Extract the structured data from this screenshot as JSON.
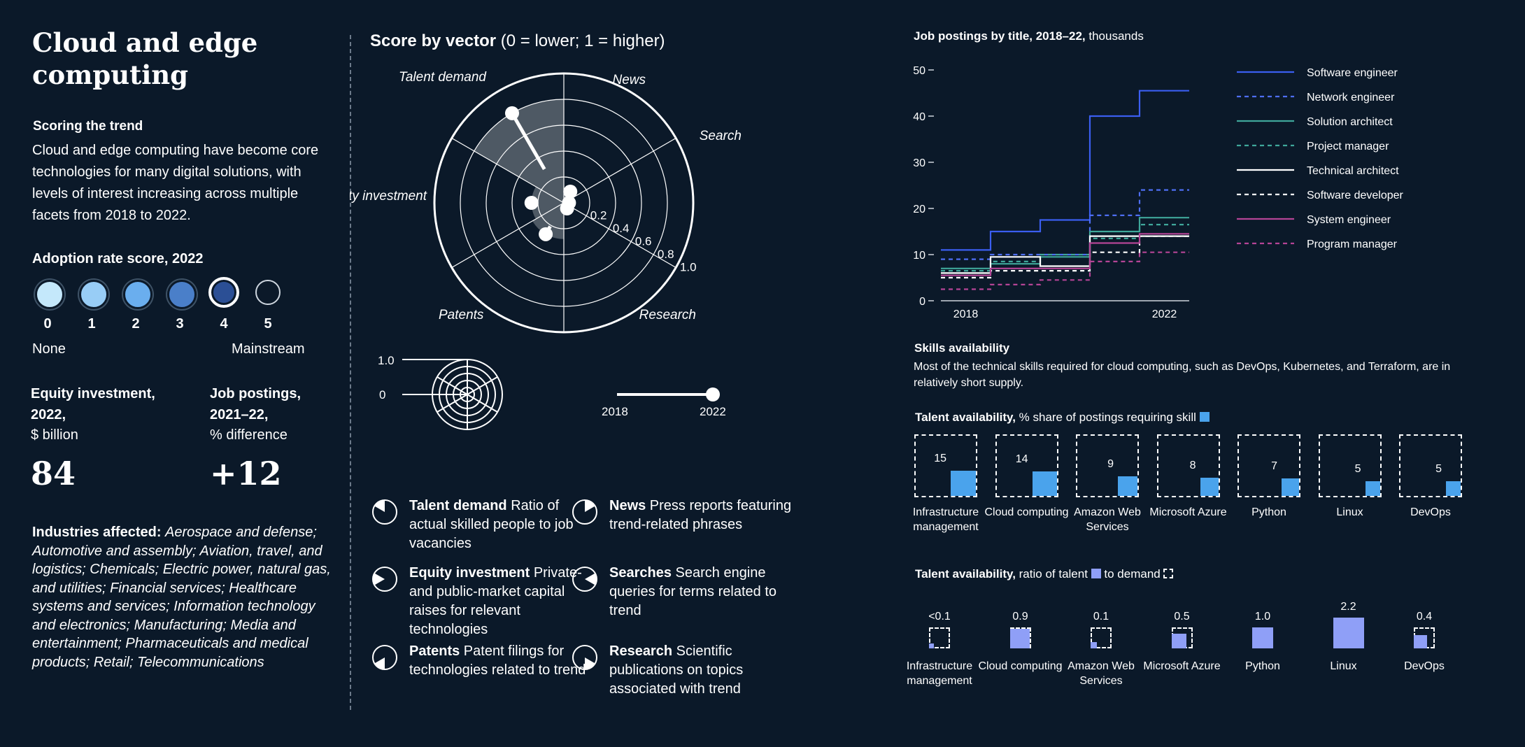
{
  "left": {
    "title": "Cloud and edge computing",
    "scoring_heading": "Scoring the trend",
    "scoring_text": "Cloud and edge computing have become core technologies for many digital solutions, with levels of interest increasing across multiple facets from 2018 to 2022.",
    "adoption_heading": "Adoption rate score, 2022",
    "adoption_scores": [
      "0",
      "1",
      "2",
      "3",
      "4",
      "5"
    ],
    "adoption_selected": 4,
    "adoption_colors": [
      "#c4e8fb",
      "#98cdf6",
      "#6aaeee",
      "#4a7fc9",
      "#2b4f95",
      "#0b1929"
    ],
    "adoption_min_label": "None",
    "adoption_max_label": "Mainstream",
    "equity_heading": "Equity investment, 2022,",
    "equity_unit": "$ billion",
    "equity_value": "84",
    "jobs_heading": "Job postings, 2021–22,",
    "jobs_unit": "% difference",
    "jobs_value": "+12",
    "industries_label": "Industries affected:",
    "industries_text": "Aerospace and defense; Automotive and assembly; Aviation, travel, and logistics; Chemicals; Electric power, natural gas, and utilities; Financial services; Healthcare systems and services; Information technology and electronics; Manufacturing; Media and entertainment; Pharmaceuticals and medical products; Retail; Telecommunications"
  },
  "middle": {
    "title_bold": "Score by vector",
    "title_rest": " (0 = lower; 1 = higher)",
    "axis_labels": [
      "Talent demand",
      "News",
      "Searches",
      "Research",
      "Patents",
      "Equity investment"
    ],
    "ring_labels": [
      "0.2",
      "0.4",
      "0.6",
      "0.8",
      "1.0"
    ],
    "key_scale_labels": [
      "1.0",
      "0"
    ],
    "time_labels": [
      "2018",
      "2022"
    ],
    "legend": [
      {
        "bold": "Talent demand",
        "text": " Ratio of actual skilled people to job vacancies"
      },
      {
        "bold": "News",
        "text": " Press reports featuring trend-related phrases"
      },
      {
        "bold": "Equity investment",
        "text": " Private- and public-market capital raises for relevant technologies"
      },
      {
        "bold": "Searches",
        "text": " Search engine queries for terms related to trend"
      },
      {
        "bold": "Patents",
        "text": " Patent filings for technologies related to trend"
      },
      {
        "bold": "Research",
        "text": " Scientific publications on topics associated with trend"
      }
    ]
  },
  "right": {
    "job_title_bold": "Job postings by title, 2018–22,",
    "job_title_rest": " thousands",
    "skills_heading": "Skills availability",
    "skills_text": "Most of the technical skills required for cloud computing, such as DevOps, Kubernetes, and Terraform, are in relatively short supply.",
    "share_title_bold": "Talent availability,",
    "share_title_rest": " % share of postings requiring skill",
    "ratio_title_bold": "Talent availability,",
    "ratio_title_mid": " ratio of talent",
    "ratio_title_end": " to demand"
  },
  "chart_data": [
    {
      "type": "radar",
      "title": "Score by vector (0 = lower; 1 = higher)",
      "axes": [
        "Talent demand",
        "News",
        "Searches",
        "Research",
        "Patents",
        "Equity investment"
      ],
      "rlim": [
        0,
        1
      ],
      "series": [
        {
          "name": "2018",
          "values": [
            0.3,
            0.05,
            0.03,
            0.03,
            0.21,
            0.25
          ]
        },
        {
          "name": "2022",
          "values": [
            0.8,
            0.1,
            0.04,
            0.05,
            0.28,
            0.25
          ]
        }
      ]
    },
    {
      "type": "line",
      "step": true,
      "title": "Job postings by title, 2018–22, thousands",
      "x": [
        2018,
        2019,
        2020,
        2021,
        2022
      ],
      "x_tick_labels": [
        "2018",
        "2022"
      ],
      "ylim": [
        0,
        50
      ],
      "y_ticks": [
        "0",
        "10",
        "20",
        "30",
        "40",
        "50"
      ],
      "series": [
        {
          "name": "Software engineer",
          "values": [
            11,
            15,
            17.5,
            40,
            45.5
          ],
          "color": "#3b5ef0",
          "dashed": false
        },
        {
          "name": "Network engineer",
          "values": [
            9,
            10,
            10,
            18.5,
            24
          ],
          "color": "#4e6ef2",
          "dashed": true
        },
        {
          "name": "Solution architect",
          "values": [
            7,
            8,
            9.5,
            15,
            18
          ],
          "color": "#3fa79a",
          "dashed": false
        },
        {
          "name": "Project manager",
          "values": [
            6.5,
            8.5,
            10,
            13.5,
            16.5
          ],
          "color": "#3fa79a",
          "dashed": true
        },
        {
          "name": "Technical architect",
          "values": [
            6,
            9.5,
            7.5,
            14,
            14
          ],
          "color": "#ffffff",
          "dashed": false
        },
        {
          "name": "Software developer",
          "values": [
            5,
            6.5,
            6.5,
            10.5,
            14
          ],
          "color": "#ffffff",
          "dashed": true
        },
        {
          "name": "System engineer",
          "values": [
            5.5,
            7,
            7,
            12.5,
            14.5
          ],
          "color": "#b54496",
          "dashed": false
        },
        {
          "name": "Program manager",
          "values": [
            2.5,
            3.5,
            4.5,
            8.5,
            10.5
          ],
          "color": "#b54496",
          "dashed": true
        }
      ]
    },
    {
      "type": "bar",
      "title": "Talent availability, % share of postings requiring skill",
      "categories": [
        "Infrastructure management",
        "Cloud computing",
        "Amazon Web Services",
        "Microsoft Azure",
        "Python",
        "Linux",
        "DevOps"
      ],
      "values": [
        15,
        14,
        9,
        8,
        7,
        5,
        5
      ],
      "value_labels": [
        "15",
        "14",
        "9",
        "8",
        "7",
        "5",
        "5"
      ]
    },
    {
      "type": "bar",
      "title": "Talent availability, ratio of talent to demand",
      "categories": [
        "Infrastructure management",
        "Cloud computing",
        "Amazon Web Services",
        "Microsoft Azure",
        "Python",
        "Linux",
        "DevOps"
      ],
      "values": [
        0.05,
        0.9,
        0.1,
        0.5,
        1.0,
        2.2,
        0.4
      ],
      "value_labels": [
        "<0.1",
        "0.9",
        "0.1",
        "0.5",
        "1.0",
        "2.2",
        "0.4"
      ]
    }
  ]
}
